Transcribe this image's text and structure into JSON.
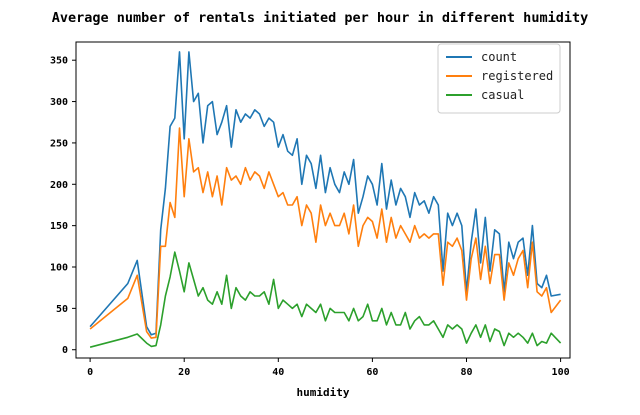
{
  "chart_data": {
    "type": "line",
    "title": "Average number of rentals initiated  per hour in different humidity",
    "xlabel": "humidity",
    "ylabel": "",
    "xlim": [
      -3,
      102
    ],
    "ylim": [
      -10,
      372
    ],
    "xticks": [
      0,
      20,
      40,
      60,
      80,
      100
    ],
    "yticks": [
      0,
      50,
      100,
      150,
      200,
      250,
      300,
      350
    ],
    "legend_position": "top-right",
    "grid": false,
    "series": [
      {
        "name": "count",
        "color": "#1f77b4",
        "x": [
          0,
          8,
          10,
          12,
          13,
          14,
          15,
          16,
          17,
          18,
          19,
          20,
          21,
          22,
          23,
          24,
          25,
          26,
          27,
          28,
          29,
          30,
          31,
          32,
          33,
          34,
          35,
          36,
          37,
          38,
          39,
          40,
          41,
          42,
          43,
          44,
          45,
          46,
          47,
          48,
          49,
          50,
          51,
          52,
          53,
          54,
          55,
          56,
          57,
          58,
          59,
          60,
          61,
          62,
          63,
          64,
          65,
          66,
          67,
          68,
          69,
          70,
          71,
          72,
          73,
          74,
          75,
          76,
          77,
          78,
          79,
          80,
          81,
          82,
          83,
          84,
          85,
          86,
          87,
          88,
          89,
          90,
          91,
          92,
          93,
          94,
          95,
          96,
          97,
          98,
          100
        ],
        "values": [
          28,
          80,
          108,
          28,
          18,
          20,
          145,
          195,
          270,
          280,
          360,
          255,
          360,
          300,
          310,
          250,
          295,
          300,
          260,
          275,
          295,
          245,
          290,
          275,
          285,
          280,
          290,
          285,
          270,
          280,
          275,
          245,
          260,
          240,
          235,
          255,
          200,
          235,
          225,
          195,
          235,
          190,
          220,
          200,
          190,
          215,
          200,
          230,
          165,
          185,
          210,
          200,
          175,
          225,
          170,
          205,
          175,
          195,
          185,
          160,
          190,
          175,
          180,
          165,
          185,
          175,
          95,
          165,
          150,
          165,
          150,
          70,
          130,
          170,
          105,
          160,
          95,
          145,
          140,
          70,
          130,
          110,
          130,
          135,
          90,
          150,
          80,
          75,
          90,
          65,
          67
        ]
      },
      {
        "name": "registered",
        "color": "#ff7f0e",
        "x": [
          0,
          8,
          10,
          12,
          13,
          14,
          15,
          16,
          17,
          18,
          19,
          20,
          21,
          22,
          23,
          24,
          25,
          26,
          27,
          28,
          29,
          30,
          31,
          32,
          33,
          34,
          35,
          36,
          37,
          38,
          39,
          40,
          41,
          42,
          43,
          44,
          45,
          46,
          47,
          48,
          49,
          50,
          51,
          52,
          53,
          54,
          55,
          56,
          57,
          58,
          59,
          60,
          61,
          62,
          63,
          64,
          65,
          66,
          67,
          68,
          69,
          70,
          71,
          72,
          73,
          74,
          75,
          76,
          77,
          78,
          79,
          80,
          81,
          82,
          83,
          84,
          85,
          86,
          87,
          88,
          89,
          90,
          91,
          92,
          93,
          94,
          95,
          96,
          97,
          98,
          100
        ],
        "values": [
          25,
          62,
          90,
          22,
          14,
          15,
          125,
          125,
          178,
          160,
          268,
          185,
          255,
          215,
          220,
          190,
          215,
          185,
          210,
          175,
          220,
          205,
          210,
          200,
          220,
          205,
          215,
          210,
          195,
          215,
          200,
          185,
          190,
          175,
          175,
          185,
          150,
          175,
          165,
          130,
          175,
          150,
          165,
          150,
          150,
          165,
          140,
          175,
          125,
          150,
          160,
          155,
          135,
          170,
          130,
          160,
          135,
          150,
          140,
          130,
          150,
          135,
          140,
          135,
          140,
          140,
          78,
          130,
          125,
          135,
          120,
          60,
          110,
          135,
          85,
          125,
          80,
          115,
          115,
          60,
          105,
          90,
          110,
          120,
          75,
          130,
          70,
          65,
          75,
          45,
          60
        ]
      },
      {
        "name": "casual",
        "color": "#2ca02c",
        "x": [
          0,
          8,
          10,
          12,
          13,
          14,
          15,
          16,
          17,
          18,
          19,
          20,
          21,
          22,
          23,
          24,
          25,
          26,
          27,
          28,
          29,
          30,
          31,
          32,
          33,
          34,
          35,
          36,
          37,
          38,
          39,
          40,
          41,
          42,
          43,
          44,
          45,
          46,
          47,
          48,
          49,
          50,
          51,
          52,
          53,
          54,
          55,
          56,
          57,
          58,
          59,
          60,
          61,
          62,
          63,
          64,
          65,
          66,
          67,
          68,
          69,
          70,
          71,
          72,
          73,
          74,
          75,
          76,
          77,
          78,
          79,
          80,
          81,
          82,
          83,
          84,
          85,
          86,
          87,
          88,
          89,
          90,
          91,
          92,
          93,
          94,
          95,
          96,
          97,
          98,
          100
        ],
        "values": [
          3,
          15,
          19,
          8,
          4,
          5,
          30,
          65,
          88,
          118,
          95,
          70,
          105,
          85,
          65,
          75,
          60,
          55,
          70,
          55,
          90,
          50,
          75,
          65,
          60,
          70,
          65,
          65,
          70,
          55,
          85,
          50,
          60,
          55,
          50,
          55,
          40,
          55,
          50,
          45,
          55,
          35,
          50,
          45,
          45,
          45,
          35,
          50,
          35,
          40,
          55,
          35,
          35,
          50,
          30,
          45,
          30,
          30,
          45,
          25,
          35,
          40,
          30,
          30,
          35,
          25,
          15,
          30,
          25,
          30,
          25,
          8,
          20,
          30,
          15,
          30,
          10,
          25,
          22,
          5,
          20,
          15,
          20,
          15,
          8,
          20,
          5,
          10,
          8,
          20,
          8
        ]
      }
    ]
  }
}
